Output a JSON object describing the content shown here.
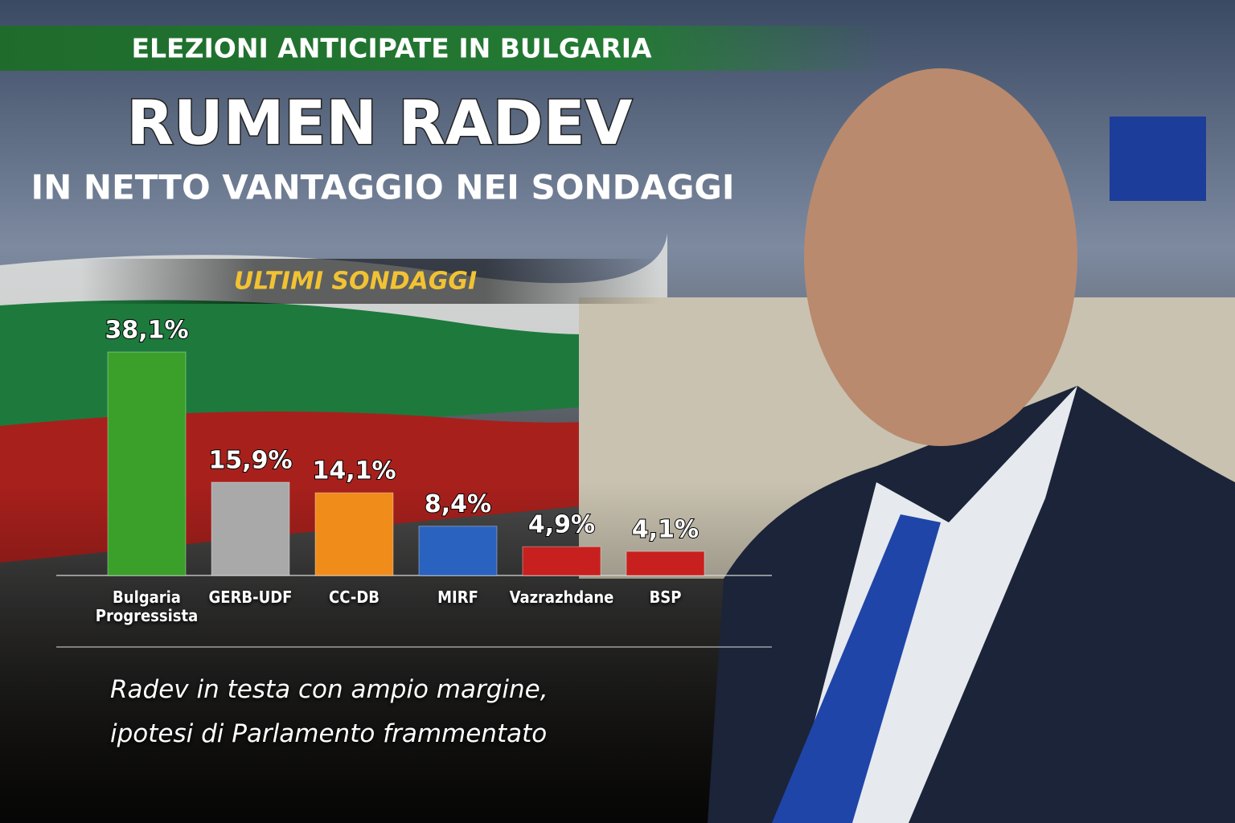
{
  "chart_data": {
    "type": "bar",
    "kicker": "ELEZIONI ANTICIPATE IN BULGARIA",
    "title": "RUMEN RADEV",
    "subtitle": "IN NETTO VANTAGGIO NEI SONDAGGI",
    "section": "ULTIMI SONDAGGI",
    "categories": [
      "Bulgaria Progressista",
      "GERB-UDF",
      "CC-DB",
      "MIRF",
      "Vazrazhdane",
      "BSP"
    ],
    "values": [
      38.1,
      15.9,
      14.1,
      8.4,
      4.9,
      4.1
    ],
    "value_labels": [
      "38,1%",
      "15,9%",
      "14,1%",
      "8,4%",
      "4,9%",
      "4,1%"
    ],
    "colors": [
      "#3aa02a",
      "#a9a9a9",
      "#f08c1a",
      "#2a62c0",
      "#c8201e",
      "#c8201e"
    ],
    "caption": [
      "Radev in testa con ampio margine,",
      "ipotesi di Parlamento frammentato"
    ]
  }
}
